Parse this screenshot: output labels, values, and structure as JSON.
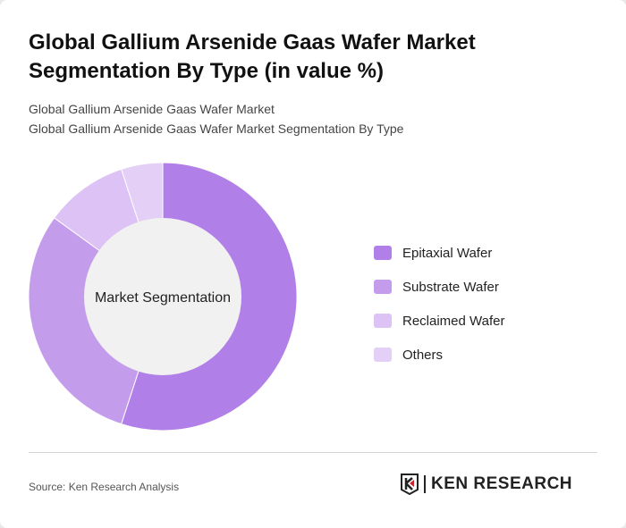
{
  "title": "Global Gallium Arsenide Gaas Wafer Market Segmentation By Type (in value %)",
  "subtitle1": "Global Gallium Arsenide Gaas Wafer Market",
  "subtitle2": "Global Gallium Arsenide Gaas Wafer Market Segmentation By Type",
  "source": "Source: Ken Research Analysis",
  "logo_text": "KEN RESEARCH",
  "chart_data": {
    "type": "pie",
    "variant": "donut",
    "center_label": "Market Segmentation",
    "categories": [
      "Epitaxial Wafer",
      "Substrate Wafer",
      "Reclaimed Wafer",
      "Others"
    ],
    "values": [
      55,
      30,
      10,
      5
    ],
    "colors": [
      "#b07fe8",
      "#c49cec",
      "#dcc2f5",
      "#e4d0f7"
    ],
    "legend_position": "right"
  }
}
